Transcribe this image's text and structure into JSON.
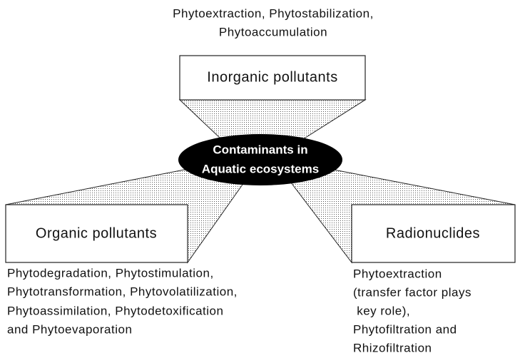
{
  "center": {
    "lines": [
      "Contaminants in",
      "Aquatic ecosystems"
    ]
  },
  "nodes": [
    {
      "label": "Inorganic pollutants",
      "methods": [
        "Phytoextraction, Phytostabilization,",
        "Phytoaccumulation"
      ]
    },
    {
      "label": "Organic pollutants",
      "methods": [
        "Phytodegradation, Phytostimulation,",
        "Phytotransformation, Phytovolatilization,",
        "Phytoassimilation, Phytodetoxification",
        "and Phytoevaporation"
      ]
    },
    {
      "label": "Radionuclides",
      "methods": [
        "Phytoextraction",
        "(transfer factor plays",
        " key role),",
        "Phytofiltration and",
        "Rhizofiltration"
      ]
    }
  ]
}
